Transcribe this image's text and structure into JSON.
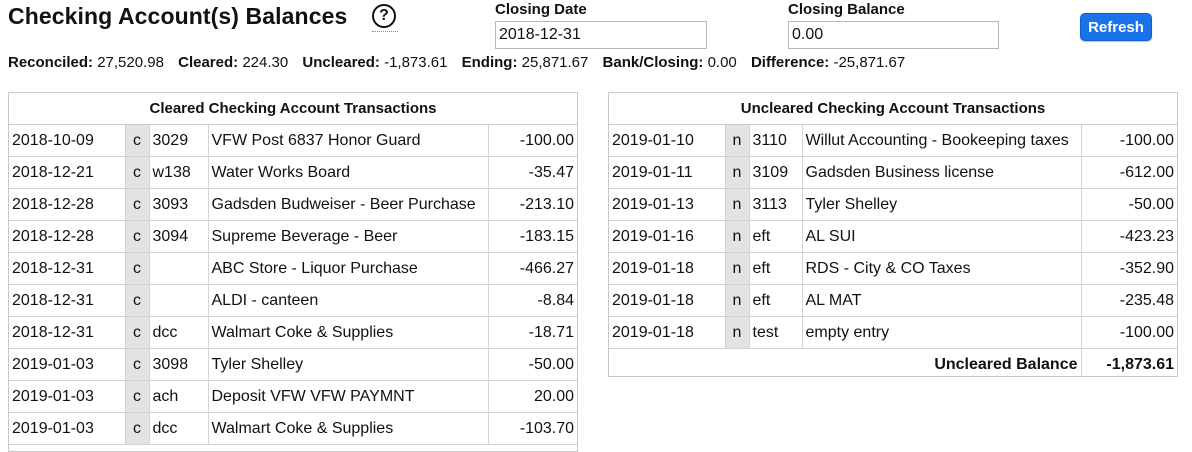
{
  "header": {
    "title": "Checking Account(s) Balances",
    "help_glyph": "?",
    "closing_date_label": "Closing Date",
    "closing_date_value": "2018-12-31",
    "closing_balance_label": "Closing Balance",
    "closing_balance_value": "0.00",
    "refresh_label": "Refresh"
  },
  "summary": {
    "reconciled_label": "Reconciled:",
    "reconciled": "27,520.98",
    "cleared_label": "Cleared:",
    "cleared": "224.30",
    "uncleared_label": "Uncleared:",
    "uncleared": "-1,873.61",
    "ending_label": "Ending:",
    "ending": "25,871.67",
    "bank_closing_label": "Bank/Closing:",
    "bank_closing": "0.00",
    "difference_label": "Difference:",
    "difference": "-25,871.67"
  },
  "cleared": {
    "title": "Cleared Checking Account Transactions",
    "rows": [
      {
        "date": "2018-10-09",
        "flag": "c",
        "num": "3029",
        "payee": "VFW Post 6837 Honor Guard",
        "amount": "-100.00"
      },
      {
        "date": "2018-12-21",
        "flag": "c",
        "num": "w138",
        "payee": "Water Works Board",
        "amount": "-35.47"
      },
      {
        "date": "2018-12-28",
        "flag": "c",
        "num": "3093",
        "payee": "Gadsden Budweiser - Beer Purchase",
        "amount": "-213.10"
      },
      {
        "date": "2018-12-28",
        "flag": "c",
        "num": "3094",
        "payee": "Supreme Beverage - Beer",
        "amount": "-183.15"
      },
      {
        "date": "2018-12-31",
        "flag": "c",
        "num": "",
        "payee": "ABC Store - Liquor Purchase",
        "amount": "-466.27"
      },
      {
        "date": "2018-12-31",
        "flag": "c",
        "num": "",
        "payee": "ALDI - canteen",
        "amount": "-8.84"
      },
      {
        "date": "2018-12-31",
        "flag": "c",
        "num": "dcc",
        "payee": "Walmart Coke & Supplies",
        "amount": "-18.71"
      },
      {
        "date": "2019-01-03",
        "flag": "c",
        "num": "3098",
        "payee": "Tyler Shelley",
        "amount": "-50.00"
      },
      {
        "date": "2019-01-03",
        "flag": "c",
        "num": "ach",
        "payee": "Deposit VFW VFW PAYMNT",
        "amount": "20.00"
      },
      {
        "date": "2019-01-03",
        "flag": "c",
        "num": "dcc",
        "payee": "Walmart Coke & Supplies",
        "amount": "-103.70"
      }
    ]
  },
  "uncleared": {
    "title": "Uncleared Checking Account Transactions",
    "rows": [
      {
        "date": "2019-01-10",
        "flag": "n",
        "num": "3110",
        "payee": "Willut Accounting - Bookeeping taxes",
        "amount": "-100.00"
      },
      {
        "date": "2019-01-11",
        "flag": "n",
        "num": "3109",
        "payee": "Gadsden Business license",
        "amount": "-612.00"
      },
      {
        "date": "2019-01-13",
        "flag": "n",
        "num": "3113",
        "payee": "Tyler Shelley",
        "amount": "-50.00"
      },
      {
        "date": "2019-01-16",
        "flag": "n",
        "num": "eft",
        "payee": "AL SUI",
        "amount": "-423.23"
      },
      {
        "date": "2019-01-18",
        "flag": "n",
        "num": "eft",
        "payee": "RDS - City & CO Taxes",
        "amount": "-352.90"
      },
      {
        "date": "2019-01-18",
        "flag": "n",
        "num": "eft",
        "payee": "AL MAT",
        "amount": "-235.48"
      },
      {
        "date": "2019-01-18",
        "flag": "n",
        "num": "test",
        "payee": "empty entry",
        "amount": "-100.00"
      }
    ],
    "total_label": "Uncleared Balance",
    "total_value": "-1,873.61"
  }
}
